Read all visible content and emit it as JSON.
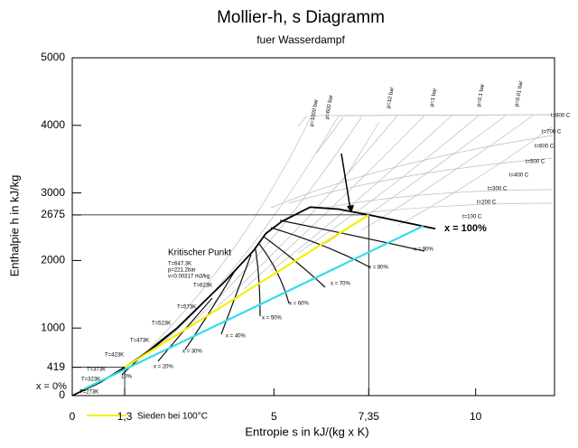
{
  "chart_data": {
    "type": "line",
    "title": "Mollier-h, s Diagramm",
    "subtitle": "fuer Wasserdampf",
    "x_label": "Entropie s in kJ/(kg x K)",
    "y_label": "Enthalpie h in kJ/kg",
    "xlim": [
      0,
      12
    ],
    "ylim": [
      0,
      5000
    ],
    "xticks": [
      0,
      {
        "value": 1.3,
        "label": "1,3"
      },
      5,
      {
        "value": 7.35,
        "label": "7,35"
      },
      10
    ],
    "yticks": [
      0,
      419,
      1000,
      2000,
      2675,
      3000,
      4000,
      5000
    ],
    "series": [
      {
        "name": "x = 0%",
        "color": "#000000",
        "x": [
          0,
          0.7,
          1.3,
          2.0,
          2.6,
          3.2,
          3.8,
          4.5
        ],
        "values": [
          0,
          200,
          419,
          700,
          1000,
          1350,
          1700,
          2150
        ]
      },
      {
        "name": "x = 100%",
        "color": "#000000",
        "x": [
          4.5,
          4.8,
          5.2,
          5.9,
          6.6,
          7.35,
          8.2,
          9.0
        ],
        "values": [
          2150,
          2400,
          2580,
          2790,
          2760,
          2675,
          2570,
          2470
        ]
      },
      {
        "name": "Sieden bei 100°C",
        "color": "#f5f000",
        "x": [
          1.3,
          7.35
        ],
        "values": [
          419,
          2675
        ]
      },
      {
        "color": "#33dde8",
        "x": [
          0.3,
          8.7
        ],
        "values": [
          100,
          2510
        ]
      }
    ],
    "annotations": [
      "Kritischer Punkt",
      "T=647.3K",
      "p=221.2bar",
      "v=0.00317 m3/kg",
      "x = 90%",
      "x = 80%",
      "x = 70%",
      "x = 60%",
      "x = 50%",
      "x = 40%",
      "x = 30%",
      "x = 20%",
      "10%",
      "T=623K",
      "T=573K",
      "T=523K",
      "T=473K",
      "T=423K",
      "T=373K",
      "T=323K",
      "T=273K",
      "p=1000 bar",
      "p=600 bar",
      "p=10 bar",
      "p=1 bar",
      "p=0.1 bar",
      "p=0.01 bar",
      "t=800 C",
      "t=700 C",
      "t=600 C",
      "t=500 C",
      "t=400 C",
      "t=300 C",
      "t=200 C",
      "t=100 C"
    ]
  }
}
